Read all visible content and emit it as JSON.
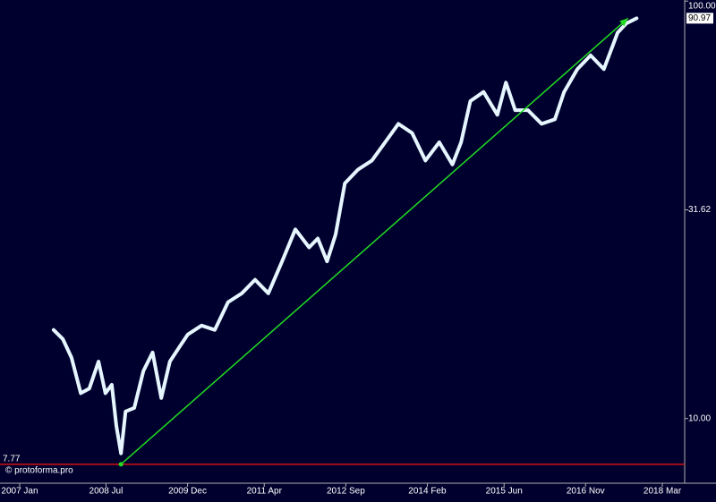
{
  "chart_data": {
    "type": "line",
    "log_scale": true,
    "background": "#00002e",
    "watermark": "© protoforma.pro",
    "xlim": [
      2006.658,
      2018.555
    ],
    "xticks": [
      {
        "value": 2007.0,
        "label": "2007 Jan"
      },
      {
        "value": 2008.5,
        "label": "2008 Jul"
      },
      {
        "value": 2009.917,
        "label": "2009 Dec"
      },
      {
        "value": 2011.25,
        "label": "2011 Apr"
      },
      {
        "value": 2012.667,
        "label": "2012 Sep"
      },
      {
        "value": 2014.083,
        "label": "2014 Feb"
      },
      {
        "value": 2015.417,
        "label": "2015 Jun"
      },
      {
        "value": 2016.833,
        "label": "2016 Nov"
      },
      {
        "value": 2018.167,
        "label": "2018 Mar"
      }
    ],
    "ylim": [
      7.0,
      100.6
    ],
    "yticks": [
      {
        "value": 100,
        "label": "100.00"
      },
      31.62,
      {
        "value": 10,
        "label": "10.00"
      }
    ],
    "series": [
      {
        "color": "#e6f6ff",
        "x": [
          2007.59,
          2007.75,
          2007.9,
          2008.06,
          2008.21,
          2008.37,
          2008.49,
          2008.6,
          2008.68,
          2008.76,
          2008.84,
          2008.99,
          2009.15,
          2009.31,
          2009.46,
          2009.61,
          2009.77,
          2009.92,
          2010.16,
          2010.39,
          2010.62,
          2010.86,
          2011.09,
          2011.32,
          2011.56,
          2011.79,
          2012.03,
          2012.18,
          2012.34,
          2012.49,
          2012.65,
          2012.88,
          2013.12,
          2013.35,
          2013.58,
          2013.82,
          2014.05,
          2014.29,
          2014.52,
          2014.67,
          2014.83,
          2015.06,
          2015.3,
          2015.45,
          2015.61,
          2015.83,
          2016.07,
          2016.3,
          2016.46,
          2016.69,
          2016.92,
          2017.15,
          2017.39,
          2017.54,
          2017.72
        ],
        "values": [
          16.3,
          15.5,
          14.0,
          11.5,
          11.8,
          13.7,
          11.5,
          12.05,
          9.6,
          8.25,
          10.4,
          10.6,
          13.0,
          14.4,
          11.2,
          13.7,
          14.8,
          15.9,
          16.7,
          16.3,
          19.0,
          19.95,
          21.5,
          19.95,
          23.8,
          28.4,
          25.7,
          27.0,
          23.8,
          27.6,
          36.6,
          39.5,
          41.5,
          45.9,
          50.8,
          48.3,
          41.5,
          45.9,
          40.6,
          45.9,
          57.6,
          60.6,
          53.4,
          63.8,
          54.8,
          54.8,
          50.8,
          52.1,
          60.6,
          68.7,
          74.1,
          68.7,
          84.0,
          88.4,
          90.97
        ]
      }
    ],
    "last_price": 90.97,
    "support_line": {
      "value": 7.77,
      "color": "#d01010"
    },
    "trend_arrow": {
      "x": [
        2008.76,
        2017.57
      ],
      "values": [
        7.77,
        90.97
      ],
      "color": "#22dd22"
    }
  }
}
